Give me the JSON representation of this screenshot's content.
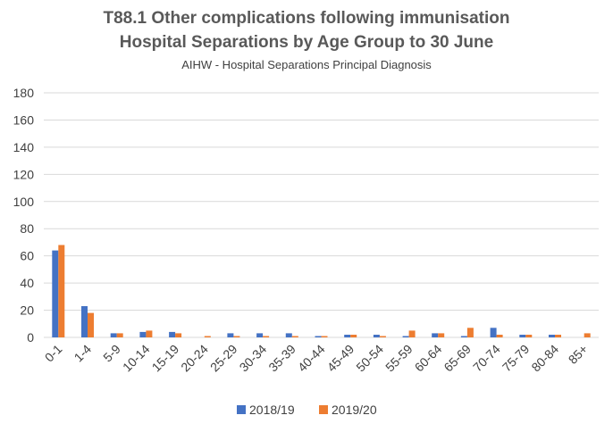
{
  "chart_data": {
    "type": "bar",
    "title": "T88.1 Other complications following immunisation",
    "title_line2": "Hospital Separations by Age Group to 30 June",
    "subtitle": "AIHW - Hospital Separations Principal Diagnosis",
    "xlabel": "",
    "ylabel": "",
    "ylim": [
      0,
      180
    ],
    "yticks": [
      0,
      20,
      40,
      60,
      80,
      100,
      120,
      140,
      160,
      180
    ],
    "grid": true,
    "legend_position": "bottom",
    "categories": [
      "0-1",
      "1-4",
      "5-9",
      "10-14",
      "15-19",
      "20-24",
      "25-29",
      "30-34",
      "35-39",
      "40-44",
      "45-49",
      "50-54",
      "55-59",
      "60-64",
      "65-69",
      "70-74",
      "75-79",
      "80-84",
      "85+"
    ],
    "series": [
      {
        "name": "2018/19",
        "color": "#4472c4",
        "values": [
          64,
          23,
          3,
          4,
          4,
          0,
          3,
          3,
          3,
          1,
          2,
          2,
          1,
          3,
          1,
          7,
          2,
          2,
          0
        ]
      },
      {
        "name": "2019/20",
        "color": "#ed7d31",
        "values": [
          68,
          18,
          3,
          5,
          3,
          1,
          1,
          1,
          1,
          1,
          2,
          1,
          5,
          3,
          7,
          2,
          2,
          2,
          3
        ]
      }
    ]
  }
}
